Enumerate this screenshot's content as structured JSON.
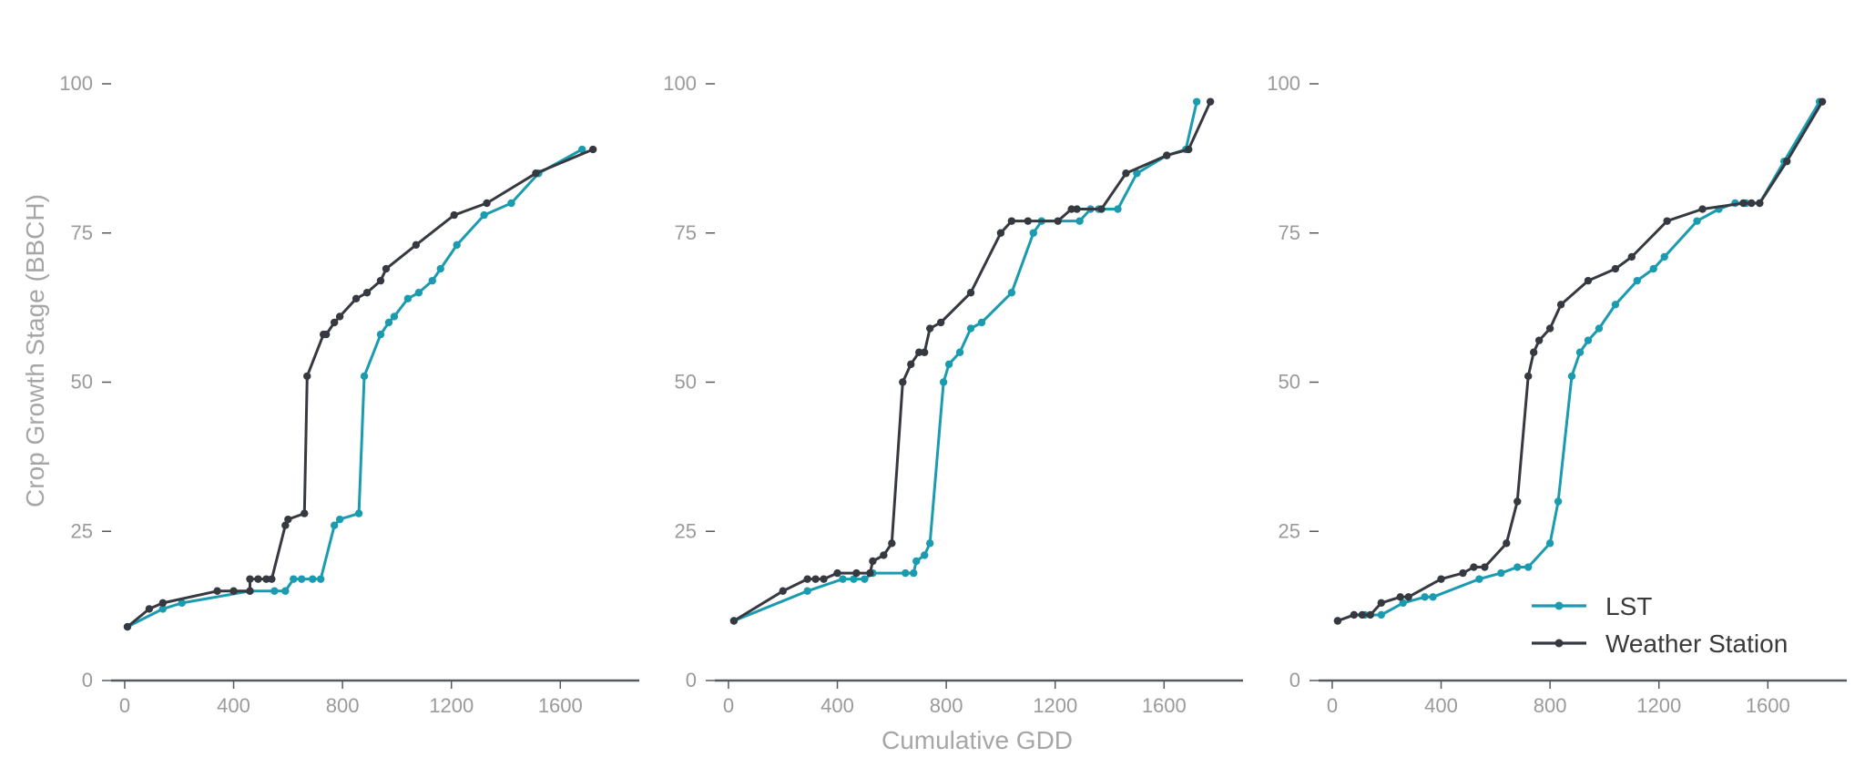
{
  "colors": {
    "lst": "#1a9bb0",
    "station": "#363a40",
    "axis": "#555a60",
    "tick_text": "#9a9a9a"
  },
  "chart_data": {
    "type": "line",
    "ylabel": "Crop Growth Stage (BBCH)",
    "xlabel": "Cumulative GDD",
    "xlim": [
      -50,
      1890
    ],
    "ylim": [
      0,
      100
    ],
    "xticks": [
      "0",
      "400",
      "800",
      "1200",
      "1600"
    ],
    "yticks": [
      "0",
      "25",
      "50",
      "75",
      "100"
    ],
    "grid": false,
    "legend": {
      "placement": "bottom-right of third panel",
      "entries": [
        "LST",
        "Weather Station"
      ]
    },
    "panels": [
      {
        "series": [
          {
            "name": "LST",
            "points": [
              [
                10,
                9
              ],
              [
                140,
                12
              ],
              [
                210,
                13
              ],
              [
                460,
                15
              ],
              [
                550,
                15
              ],
              [
                590,
                15
              ],
              [
                620,
                17
              ],
              [
                650,
                17
              ],
              [
                690,
                17
              ],
              [
                720,
                17
              ],
              [
                770,
                26
              ],
              [
                790,
                27
              ],
              [
                860,
                28
              ],
              [
                880,
                51
              ],
              [
                940,
                58
              ],
              [
                970,
                60
              ],
              [
                990,
                61
              ],
              [
                1040,
                64
              ],
              [
                1080,
                65
              ],
              [
                1130,
                67
              ],
              [
                1160,
                69
              ],
              [
                1220,
                73
              ],
              [
                1320,
                78
              ],
              [
                1420,
                80
              ],
              [
                1520,
                85
              ],
              [
                1680,
                89
              ]
            ]
          },
          {
            "name": "Weather Station",
            "points": [
              [
                10,
                9
              ],
              [
                90,
                12
              ],
              [
                140,
                13
              ],
              [
                340,
                15
              ],
              [
                400,
                15
              ],
              [
                460,
                15
              ],
              [
                460,
                17
              ],
              [
                490,
                17
              ],
              [
                520,
                17
              ],
              [
                540,
                17
              ],
              [
                590,
                26
              ],
              [
                600,
                27
              ],
              [
                660,
                28
              ],
              [
                670,
                51
              ],
              [
                730,
                58
              ],
              [
                740,
                58
              ],
              [
                770,
                60
              ],
              [
                790,
                61
              ],
              [
                850,
                64
              ],
              [
                890,
                65
              ],
              [
                940,
                67
              ],
              [
                960,
                69
              ],
              [
                1070,
                73
              ],
              [
                1210,
                78
              ],
              [
                1330,
                80
              ],
              [
                1510,
                85
              ],
              [
                1720,
                89
              ]
            ]
          }
        ]
      },
      {
        "series": [
          {
            "name": "LST",
            "points": [
              [
                20,
                10
              ],
              [
                290,
                15
              ],
              [
                420,
                17
              ],
              [
                460,
                17
              ],
              [
                500,
                17
              ],
              [
                530,
                18
              ],
              [
                650,
                18
              ],
              [
                680,
                18
              ],
              [
                690,
                20
              ],
              [
                720,
                21
              ],
              [
                740,
                23
              ],
              [
                790,
                50
              ],
              [
                810,
                53
              ],
              [
                850,
                55
              ],
              [
                890,
                59
              ],
              [
                930,
                60
              ],
              [
                1040,
                65
              ],
              [
                1120,
                75
              ],
              [
                1150,
                77
              ],
              [
                1290,
                77
              ],
              [
                1330,
                79
              ],
              [
                1360,
                79
              ],
              [
                1430,
                79
              ],
              [
                1500,
                85
              ],
              [
                1610,
                88
              ],
              [
                1680,
                89
              ],
              [
                1720,
                97
              ]
            ]
          },
          {
            "name": "Weather Station",
            "points": [
              [
                20,
                10
              ],
              [
                200,
                15
              ],
              [
                290,
                17
              ],
              [
                320,
                17
              ],
              [
                350,
                17
              ],
              [
                400,
                18
              ],
              [
                470,
                18
              ],
              [
                520,
                18
              ],
              [
                530,
                20
              ],
              [
                570,
                21
              ],
              [
                600,
                23
              ],
              [
                640,
                50
              ],
              [
                670,
                53
              ],
              [
                700,
                55
              ],
              [
                720,
                55
              ],
              [
                740,
                59
              ],
              [
                780,
                60
              ],
              [
                890,
                65
              ],
              [
                1000,
                75
              ],
              [
                1040,
                77
              ],
              [
                1100,
                77
              ],
              [
                1210,
                77
              ],
              [
                1260,
                79
              ],
              [
                1280,
                79
              ],
              [
                1370,
                79
              ],
              [
                1460,
                85
              ],
              [
                1610,
                88
              ],
              [
                1690,
                89
              ],
              [
                1770,
                97
              ]
            ]
          }
        ]
      },
      {
        "series": [
          {
            "name": "LST",
            "points": [
              [
                20,
                10
              ],
              [
                80,
                11
              ],
              [
                120,
                11
              ],
              [
                180,
                11
              ],
              [
                260,
                13
              ],
              [
                340,
                14
              ],
              [
                370,
                14
              ],
              [
                540,
                17
              ],
              [
                620,
                18
              ],
              [
                680,
                19
              ],
              [
                720,
                19
              ],
              [
                800,
                23
              ],
              [
                830,
                30
              ],
              [
                880,
                51
              ],
              [
                910,
                55
              ],
              [
                940,
                57
              ],
              [
                980,
                59
              ],
              [
                1040,
                63
              ],
              [
                1120,
                67
              ],
              [
                1180,
                69
              ],
              [
                1220,
                71
              ],
              [
                1340,
                77
              ],
              [
                1420,
                79
              ],
              [
                1480,
                80
              ],
              [
                1520,
                80
              ],
              [
                1570,
                80
              ],
              [
                1660,
                87
              ],
              [
                1790,
                97
              ]
            ]
          },
          {
            "name": "Weather Station",
            "points": [
              [
                20,
                10
              ],
              [
                80,
                11
              ],
              [
                110,
                11
              ],
              [
                140,
                11
              ],
              [
                180,
                13
              ],
              [
                250,
                14
              ],
              [
                280,
                14
              ],
              [
                400,
                17
              ],
              [
                480,
                18
              ],
              [
                520,
                19
              ],
              [
                560,
                19
              ],
              [
                640,
                23
              ],
              [
                680,
                30
              ],
              [
                720,
                51
              ],
              [
                740,
                55
              ],
              [
                760,
                57
              ],
              [
                800,
                59
              ],
              [
                840,
                63
              ],
              [
                940,
                67
              ],
              [
                1040,
                69
              ],
              [
                1100,
                71
              ],
              [
                1230,
                77
              ],
              [
                1360,
                79
              ],
              [
                1510,
                80
              ],
              [
                1540,
                80
              ],
              [
                1570,
                80
              ],
              [
                1670,
                87
              ],
              [
                1800,
                97
              ]
            ]
          }
        ]
      }
    ]
  }
}
